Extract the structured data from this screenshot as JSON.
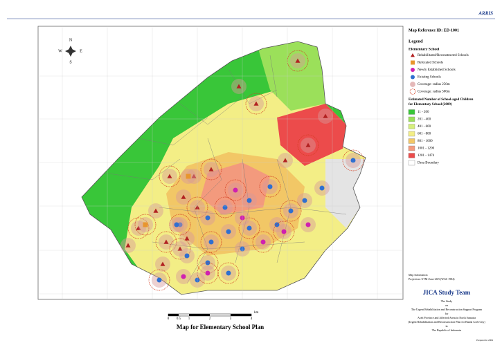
{
  "header": {
    "corner_label": "ARRIS",
    "map_reference": "Map Reference ID: ED-1001"
  },
  "compass": {
    "n": "N",
    "s": "S",
    "e": "E",
    "w": "W"
  },
  "legend": {
    "title": "Legend",
    "school_heading": "Elementary School",
    "school_items": [
      {
        "label": "Rehabilitated/Reconstructed Schools",
        "symbol": "triangle",
        "color": "#b22222"
      },
      {
        "label": "Relocated Schools",
        "symbol": "square",
        "color": "#e8962e"
      },
      {
        "label": "Newly Established Schools",
        "symbol": "circle",
        "color": "#d020b0"
      },
      {
        "label": "Existing Schools",
        "symbol": "circle",
        "color": "#2f6fd0"
      },
      {
        "label": "Coverage: radius 250m",
        "symbol": "halo",
        "color": "#d89a9a"
      },
      {
        "label": "Coverage: radius 500m",
        "symbol": "dashed",
        "color": "#d23b1e"
      }
    ],
    "population_heading": [
      "Estimated Number of School-aged Children",
      "for Elementary School (2009)"
    ],
    "population_items": [
      {
        "label": "11 - 200",
        "color": "#39c639"
      },
      {
        "label": "201 - 400",
        "color": "#9be05a"
      },
      {
        "label": "401 - 600",
        "color": "#d6ef7c"
      },
      {
        "label": "601 - 800",
        "color": "#f3ee86"
      },
      {
        "label": "801 - 1000",
        "color": "#f2c766"
      },
      {
        "label": "1001 - 1200",
        "color": "#f39a7d"
      },
      {
        "label": "1201 - 1474",
        "color": "#ec4b4b"
      },
      {
        "label": "Desa Boundary",
        "color": "#ffffff"
      }
    ]
  },
  "map_info": {
    "heading": "Map Information",
    "projection": "Projection: UTM Zone-46N (WGS 1984)"
  },
  "credits": {
    "team": "JICA Study Team",
    "lines": [
      "The Study",
      "on",
      "The Urgent Rehabilitation and Reconstruction Support Program",
      "for",
      "Aceh Province and Affected Areas in North Sumatra",
      "(Urgent Rehabilitation and Reconstruction Plan for Banda Aceh City)",
      "in",
      "The Republic of Indonesia"
    ],
    "prepared": "Prepared in 2009"
  },
  "title": "Map for Elementary School Plan",
  "scale": {
    "ticks": [
      "0",
      "0.5",
      "1",
      "2",
      "3",
      "4"
    ],
    "unit": "km"
  }
}
